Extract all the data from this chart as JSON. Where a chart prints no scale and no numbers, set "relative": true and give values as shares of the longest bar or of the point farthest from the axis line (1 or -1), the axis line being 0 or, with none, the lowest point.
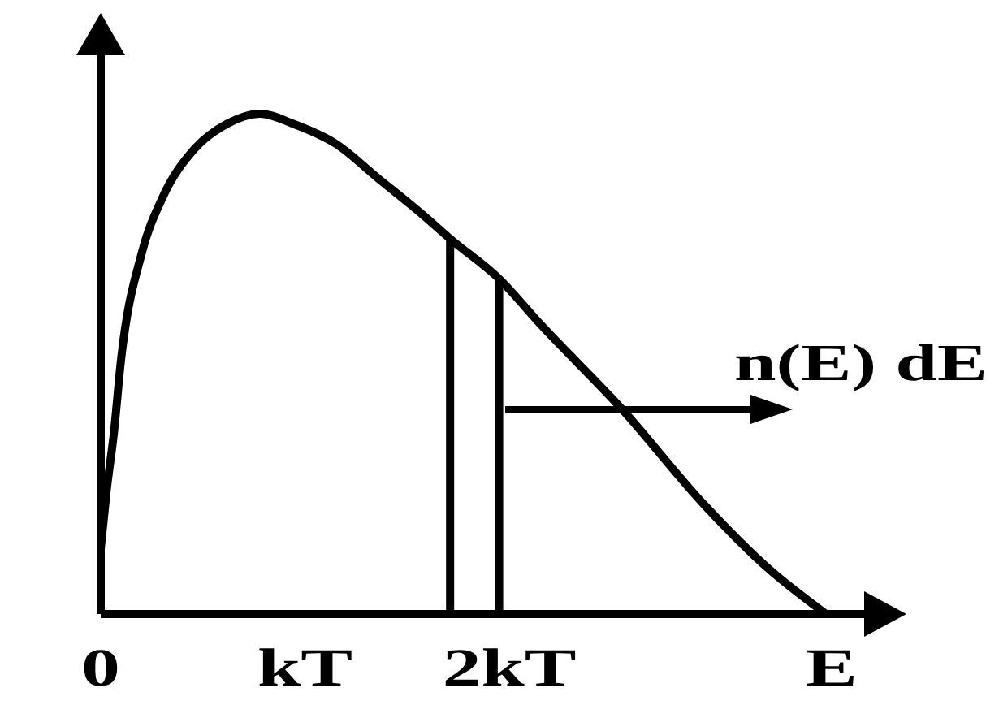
{
  "chart_data": {
    "type": "line",
    "relative": true,
    "xlabel": "E",
    "xlim": [
      0,
      3.8
    ],
    "xticks": [
      0,
      {
        "value": 1,
        "label": "kT"
      },
      {
        "value": 2,
        "label": "2kT"
      }
    ],
    "series": [
      {
        "color": "#000000",
        "x": [
          0,
          0.03,
          0.064,
          0.1,
          0.2,
          0.3,
          0.46,
          0.62,
          0.78,
          0.94,
          1.15,
          1.36,
          1.57,
          1.71,
          1.95,
          2.15,
          2.55,
          2.95,
          3.27,
          3.55
        ],
        "values": [
          0.13,
          0.25,
          0.36,
          0.51,
          0.72,
          0.83,
          0.93,
          0.98,
          1.0,
          0.98,
          0.94,
          0.87,
          0.8,
          0.75,
          0.67,
          0.58,
          0.41,
          0.22,
          0.09,
          0
        ]
      },
      {
        "color": "#000000",
        "x": [
          1.71,
          1.71
        ],
        "values": [
          0,
          0.75
        ]
      },
      {
        "color": "#000000",
        "x": [
          1.95,
          1.95
        ],
        "values": [
          0,
          0.67
        ]
      }
    ],
    "marker": "none",
    "annotations": [
      "n(E) dE"
    ]
  }
}
